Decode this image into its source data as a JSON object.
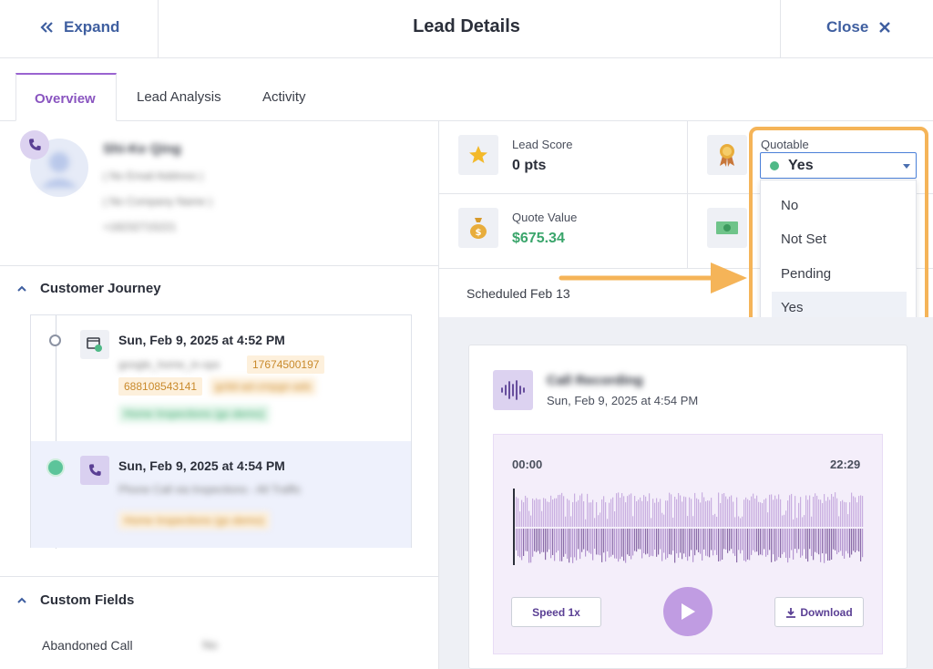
{
  "header": {
    "expand_label": "Expand",
    "title": "Lead Details",
    "close_label": "Close"
  },
  "tabs": [
    {
      "label": "Overview",
      "active": true
    },
    {
      "label": "Lead Analysis",
      "active": false
    },
    {
      "label": "Activity",
      "active": false
    }
  ],
  "contact": {
    "name": "Shi-Ke Qing",
    "email": "( No Email Address )",
    "company": "( No Company Name )",
    "phone": "+18232715221"
  },
  "journey": {
    "heading": "Customer Journey",
    "events": [
      {
        "timestamp": "Sun, Feb 9, 2025 at 4:52 PM",
        "source": "google_home_in-spx",
        "badges": [
          "17674500197",
          "688108543141",
          "gclid-ad-cmpgn-ads"
        ],
        "tag": "Home Inspections (gc-demo)"
      },
      {
        "timestamp": "Sun, Feb 9, 2025 at 4:54 PM",
        "source": "Phone Call via Inspections - All Traffic",
        "tag": "Home Inspections (gc-demo)"
      }
    ]
  },
  "custom_fields": {
    "heading": "Custom Fields",
    "rows": [
      {
        "label": "Abandoned Call",
        "value": "No"
      }
    ]
  },
  "stats": {
    "lead_score_label": "Lead Score",
    "lead_score_value": "0 pts",
    "quote_value_label": "Quote Value",
    "quote_value": "$675.34",
    "quotable_label": "Quotable",
    "quotable_value": "Yes",
    "scheduled": "Scheduled Feb 13"
  },
  "quotable_options": [
    "No",
    "Not Set",
    "Pending",
    "Yes"
  ],
  "recording": {
    "title": "Call Recording",
    "timestamp": "Sun, Feb 9, 2025 at 4:54 PM",
    "time_start": "00:00",
    "time_end": "22:29",
    "speed_label": "Speed 1x",
    "download_label": "Download"
  },
  "colors": {
    "accent_purple": "#9a63d0",
    "link_blue": "#3f5fa0",
    "money_green": "#3aa56b",
    "callout_orange": "#f5b458",
    "selected_dot": "#4fb987"
  }
}
